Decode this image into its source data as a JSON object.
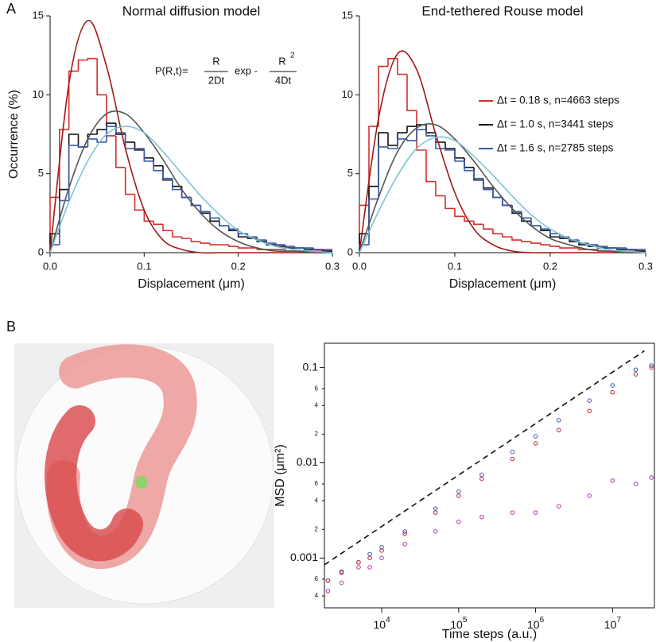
{
  "panel_labels": [
    "A",
    "B"
  ],
  "chart_data": [
    {
      "type": "histogram",
      "title": "Normal diffusion model",
      "xlabel": "Displacement (μm)",
      "ylabel": "Occurrence (%)",
      "xlim": [
        0,
        0.3
      ],
      "ylim": [
        0,
        15
      ],
      "xticks": [
        {
          "value": 0,
          "label": "0.0"
        },
        0.1,
        0.2,
        0.3
      ],
      "yticks": [
        0,
        5,
        10,
        15
      ],
      "annotation": {
        "lhs": "P(R,t)=",
        "num1": "R",
        "den1": "2Dt",
        "mid": "exp -",
        "num2": "R",
        "sup": "2",
        "den2": "4Dt"
      },
      "bins": [
        0,
        0.01,
        0.02,
        0.03,
        0.04,
        0.05,
        0.06,
        0.07,
        0.08,
        0.09,
        0.1,
        0.11,
        0.12,
        0.13,
        0.14,
        0.15,
        0.16,
        0.17,
        0.18,
        0.19,
        0.2,
        0.21,
        0.22,
        0.23,
        0.24,
        0.25,
        0.26,
        0.27,
        0.28,
        0.29,
        0.3
      ],
      "series": [
        {
          "color": "#d0312d",
          "values": [
            3.5,
            7.8,
            11.5,
            12.2,
            12.3,
            10.0,
            7.4,
            5.4,
            3.7,
            2.7,
            2.0,
            1.8,
            1.4,
            1.0,
            0.9,
            0.7,
            0.6,
            0.5,
            0.5,
            0.4,
            0.3,
            0.3,
            0.2,
            0.2,
            0.2,
            0.1,
            0.1,
            0.1,
            0.1,
            0.1
          ]
        },
        {
          "color": "#111111",
          "values": [
            1.2,
            4.0,
            7.5,
            6.7,
            7.5,
            7.8,
            8.2,
            7.5,
            7.0,
            6.5,
            6.0,
            5.5,
            4.6,
            4.2,
            3.5,
            3.0,
            2.5,
            2.0,
            1.7,
            1.4,
            1.0,
            0.9,
            0.7,
            0.5,
            0.4,
            0.3,
            0.3,
            0.2,
            0.2,
            0.1
          ]
        },
        {
          "color": "#3a5aa8",
          "values": [
            0.5,
            3.3,
            6.8,
            6.7,
            7.2,
            7.0,
            8.0,
            7.6,
            6.6,
            6.6,
            5.8,
            5.2,
            4.7,
            4.0,
            3.5,
            3.0,
            2.6,
            2.2,
            1.7,
            1.5,
            1.2,
            1.0,
            0.8,
            0.6,
            0.5,
            0.4,
            0.3,
            0.3,
            0.2,
            0.2
          ]
        }
      ],
      "fit_x": [
        0,
        0.02,
        0.04,
        0.06,
        0.08,
        0.1,
        0.12,
        0.14,
        0.16,
        0.18,
        0.2,
        0.22,
        0.24,
        0.26,
        0.28,
        0.3
      ],
      "fits": [
        {
          "color": "#a01818",
          "values": [
            0,
            10.7,
            14.7,
            11.8,
            6.6,
            2.7,
            0.8,
            0.2,
            0,
            0,
            0,
            0,
            0,
            0,
            0,
            0
          ]
        },
        {
          "color": "#555555",
          "values": [
            0,
            4.1,
            7.2,
            8.8,
            8.8,
            7.6,
            5.9,
            4.0,
            2.5,
            1.4,
            0.7,
            0.3,
            0.1,
            0.1,
            0,
            0
          ]
        },
        {
          "color": "#7cc4d4",
          "values": [
            0,
            3.2,
            5.8,
            7.5,
            8.0,
            7.6,
            6.4,
            5.0,
            3.6,
            2.4,
            1.4,
            0.8,
            0.4,
            0.2,
            0.1,
            0
          ]
        }
      ]
    },
    {
      "type": "histogram",
      "title": "End-tethered Rouse model",
      "xlabel": "Displacement (μm)",
      "xlim": [
        0,
        0.3
      ],
      "ylim": [
        0,
        15
      ],
      "xticks": [
        {
          "value": 0,
          "label": "0.0"
        },
        0.1,
        0.2,
        0.3
      ],
      "yticks": [
        0,
        5,
        10,
        15
      ],
      "legend": "right",
      "bins": [
        0,
        0.01,
        0.02,
        0.03,
        0.04,
        0.05,
        0.06,
        0.07,
        0.08,
        0.09,
        0.1,
        0.11,
        0.12,
        0.13,
        0.14,
        0.15,
        0.16,
        0.17,
        0.18,
        0.19,
        0.2,
        0.21,
        0.22,
        0.23,
        0.24,
        0.25,
        0.26,
        0.27,
        0.28,
        0.29,
        0.3
      ],
      "series": [
        {
          "name": "Δt = 0.18 s,  n=4663 steps",
          "color": "#d0312d",
          "values": [
            3.0,
            8.0,
            11.8,
            12.3,
            11.3,
            9.0,
            6.5,
            4.5,
            3.6,
            2.8,
            2.3,
            2.0,
            1.8,
            1.5,
            1.2,
            1.0,
            0.8,
            0.7,
            0.6,
            0.5,
            0.4,
            0.3,
            0.3,
            0.2,
            0.2,
            0.1,
            0.1,
            0.1,
            0.1,
            0.1
          ]
        },
        {
          "name": "Δt = 1.0 s,   n=3441 steps",
          "color": "#111111",
          "values": [
            1.2,
            4.2,
            7.6,
            6.8,
            7.6,
            8.0,
            8.1,
            7.6,
            7.0,
            6.6,
            6.0,
            5.4,
            4.6,
            4.1,
            3.5,
            3.0,
            2.5,
            2.0,
            1.7,
            1.4,
            1.0,
            0.9,
            0.7,
            0.5,
            0.4,
            0.3,
            0.3,
            0.2,
            0.2,
            0.1
          ]
        },
        {
          "name": "Δt = 1.6 s,   n=2785 steps",
          "color": "#3a5aa8",
          "values": [
            0.5,
            3.4,
            6.7,
            6.6,
            7.2,
            7.1,
            7.8,
            7.4,
            6.6,
            6.5,
            5.8,
            5.2,
            4.7,
            4.0,
            3.5,
            3.0,
            2.6,
            2.2,
            1.7,
            1.5,
            1.2,
            1.0,
            0.8,
            0.6,
            0.5,
            0.4,
            0.3,
            0.3,
            0.2,
            0.2
          ]
        }
      ],
      "fit_x": [
        0,
        0.02,
        0.04,
        0.06,
        0.08,
        0.1,
        0.12,
        0.14,
        0.16,
        0.18,
        0.2,
        0.22,
        0.24,
        0.26,
        0.28,
        0.3
      ],
      "fits": [
        {
          "color": "#a01818",
          "values": [
            0,
            8.5,
            12.6,
            11.6,
            7.5,
            3.8,
            1.5,
            0.5,
            0.1,
            0,
            0,
            0,
            0,
            0,
            0,
            0
          ]
        },
        {
          "color": "#555555",
          "values": [
            0,
            3.5,
            6.4,
            7.9,
            8.1,
            7.2,
            5.8,
            4.2,
            2.8,
            1.7,
            0.9,
            0.5,
            0.2,
            0.1,
            0,
            0
          ]
        },
        {
          "color": "#7cc4d4",
          "values": [
            0,
            2.6,
            4.9,
            6.6,
            7.3,
            7.1,
            6.1,
            4.9,
            3.6,
            2.4,
            1.5,
            0.9,
            0.5,
            0.2,
            0.1,
            0
          ]
        }
      ]
    },
    {
      "type": "scatter",
      "xlabel": "Time steps (a.u.)",
      "ylabel": "MSD (μm²)",
      "log": true,
      "xlim": [
        1800,
        35000000
      ],
      "ylim": [
        0.0003,
        0.18
      ],
      "xticks": [
        {
          "value": 10000,
          "label": "10",
          "exponent": "4"
        },
        {
          "value": 100000,
          "label": "10",
          "exponent": "5"
        },
        {
          "value": 1000000,
          "label": "10",
          "exponent": "6"
        },
        {
          "value": 10000000,
          "label": "10",
          "exponent": "7"
        }
      ],
      "yticks": [
        {
          "value": 0.0004,
          "label": "4"
        },
        {
          "value": 0.0006,
          "label": "6"
        },
        0.001,
        {
          "value": 0.002,
          "label": "2"
        },
        {
          "value": 0.004,
          "label": "4"
        },
        {
          "value": 0.006,
          "label": "6"
        },
        0.01,
        {
          "value": 0.02,
          "label": "2"
        },
        {
          "value": 0.04,
          "label": "4"
        },
        {
          "value": 0.06,
          "label": "6"
        },
        0.1
      ],
      "x": [
        2000,
        3000,
        5000,
        7000,
        10000,
        20000,
        50000,
        100000,
        200000,
        500000,
        1000000,
        2000000,
        5000000,
        10000000,
        20000000,
        32000000
      ],
      "series": [
        {
          "color": "#3b5bbf",
          "values": [
            0.00058,
            0.00072,
            0.0009,
            0.0011,
            0.0013,
            0.0019,
            0.0033,
            0.005,
            0.0075,
            0.013,
            0.019,
            0.028,
            0.045,
            0.065,
            0.095,
            0.105
          ]
        },
        {
          "color": "#c0282a",
          "values": [
            0.00058,
            0.0007,
            0.0009,
            0.001,
            0.0012,
            0.0018,
            0.003,
            0.0045,
            0.0068,
            0.011,
            0.016,
            0.022,
            0.035,
            0.055,
            0.085,
            0.1
          ]
        },
        {
          "color": "#b03aa8",
          "values": [
            0.00045,
            0.00055,
            0.0008,
            0.0008,
            0.001,
            0.0014,
            0.0019,
            0.0024,
            0.0027,
            0.003,
            0.003,
            0.0035,
            0.0045,
            0.0065,
            0.006,
            0.007
          ]
        }
      ],
      "reference_line": {
        "x": [
          1800,
          26000000
        ],
        "values": [
          0.00085,
          0.15
        ]
      }
    }
  ]
}
